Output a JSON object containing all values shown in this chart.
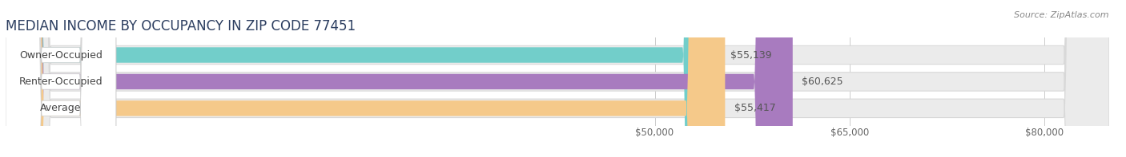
{
  "title": "MEDIAN INCOME BY OCCUPANCY IN ZIP CODE 77451",
  "source": "Source: ZipAtlas.com",
  "categories": [
    "Owner-Occupied",
    "Renter-Occupied",
    "Average"
  ],
  "values": [
    55139,
    60625,
    55417
  ],
  "labels": [
    "$55,139",
    "$60,625",
    "$55,417"
  ],
  "bar_colors": [
    "#72ceca",
    "#a87bbf",
    "#f5c98a"
  ],
  "background_color": "#ffffff",
  "bar_bg_color": "#ebebeb",
  "bar_bg_border_color": "#d8d8d8",
  "xlim_min": 0,
  "xlim_max": 85000,
  "display_xlim_min": 45000,
  "xticks": [
    50000,
    65000,
    80000
  ],
  "xtick_labels": [
    "$50,000",
    "$65,000",
    "$80,000"
  ],
  "title_fontsize": 12,
  "label_fontsize": 9,
  "value_fontsize": 9,
  "tick_fontsize": 8.5,
  "source_fontsize": 8
}
